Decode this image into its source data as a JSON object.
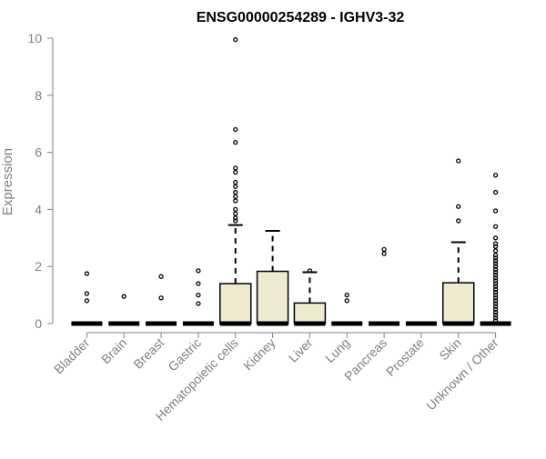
{
  "chart_data": {
    "type": "box",
    "title": "ENSG00000254289 - IGHV3-32",
    "xlabel": "",
    "ylabel": "Expression",
    "ylim": [
      0,
      10
    ],
    "yticks": [
      0,
      2,
      4,
      6,
      8,
      10
    ],
    "grid": false,
    "colors": {
      "box_fill": "#efe9cf",
      "stroke": "#000000",
      "axis": "#7f7f7f",
      "tick_label": "#7f7f7f",
      "title": "#000000"
    },
    "categories": [
      "Bladder",
      "Brain",
      "Breast",
      "Gastric",
      "Hematopoietic cells",
      "Kidney",
      "Liver",
      "Lung",
      "Pancreas",
      "Prostate",
      "Skin",
      "Unknown / Other"
    ],
    "boxes": [
      {
        "category": "Bladder",
        "q1": 0,
        "median": 0,
        "q3": 0,
        "whisker_low": 0,
        "whisker_high": 0,
        "outliers": [
          1.75,
          1.05,
          0.8
        ]
      },
      {
        "category": "Brain",
        "q1": 0,
        "median": 0,
        "q3": 0,
        "whisker_low": 0,
        "whisker_high": 0,
        "outliers": [
          0.95
        ]
      },
      {
        "category": "Breast",
        "q1": 0,
        "median": 0,
        "q3": 0,
        "whisker_low": 0,
        "whisker_high": 0,
        "outliers": [
          1.65,
          0.9
        ]
      },
      {
        "category": "Gastric",
        "q1": 0,
        "median": 0,
        "q3": 0,
        "whisker_low": 0,
        "whisker_high": 0,
        "outliers": [
          1.85,
          1.4,
          1.0,
          0.7
        ]
      },
      {
        "category": "Hematopoietic cells",
        "q1": 0,
        "median": 0,
        "q3": 1.4,
        "whisker_low": 0,
        "whisker_high": 3.45,
        "outliers": [
          9.95,
          6.8,
          6.35,
          5.45,
          5.3,
          4.95,
          4.8,
          4.6,
          4.45,
          4.3,
          4.0,
          3.85,
          3.7,
          3.6
        ]
      },
      {
        "category": "Kidney",
        "q1": 0,
        "median": 0,
        "q3": 1.83,
        "whisker_low": 0,
        "whisker_high": 3.25,
        "outliers": []
      },
      {
        "category": "Liver",
        "q1": 0,
        "median": 0,
        "q3": 0.72,
        "whisker_low": 0,
        "whisker_high": 1.8,
        "outliers": [
          1.85
        ]
      },
      {
        "category": "Lung",
        "q1": 0,
        "median": 0,
        "q3": 0,
        "whisker_low": 0,
        "whisker_high": 0,
        "outliers": [
          1.0,
          0.8
        ]
      },
      {
        "category": "Pancreas",
        "q1": 0,
        "median": 0,
        "q3": 0,
        "whisker_low": 0,
        "whisker_high": 0,
        "outliers": [
          2.6,
          2.45
        ]
      },
      {
        "category": "Prostate",
        "q1": 0,
        "median": 0,
        "q3": 0,
        "whisker_low": 0,
        "whisker_high": 0,
        "outliers": []
      },
      {
        "category": "Skin",
        "q1": 0,
        "median": 0,
        "q3": 1.43,
        "whisker_low": 0,
        "whisker_high": 2.85,
        "outliers": [
          5.7,
          4.1,
          3.6
        ]
      },
      {
        "category": "Unknown / Other",
        "q1": 0,
        "median": 0,
        "q3": 0,
        "whisker_low": 0,
        "whisker_high": 0,
        "outliers": [
          5.2,
          4.6,
          3.95,
          3.4,
          3.0,
          2.8,
          2.7,
          2.55,
          2.4,
          2.3,
          2.2,
          2.1,
          2.0,
          1.9,
          1.8,
          1.7,
          1.6,
          1.5,
          1.4,
          1.3,
          1.2,
          1.1,
          1.0,
          0.9,
          0.8,
          0.7,
          0.6,
          0.5,
          0.4,
          0.3,
          0.2,
          0.1
        ]
      }
    ]
  }
}
